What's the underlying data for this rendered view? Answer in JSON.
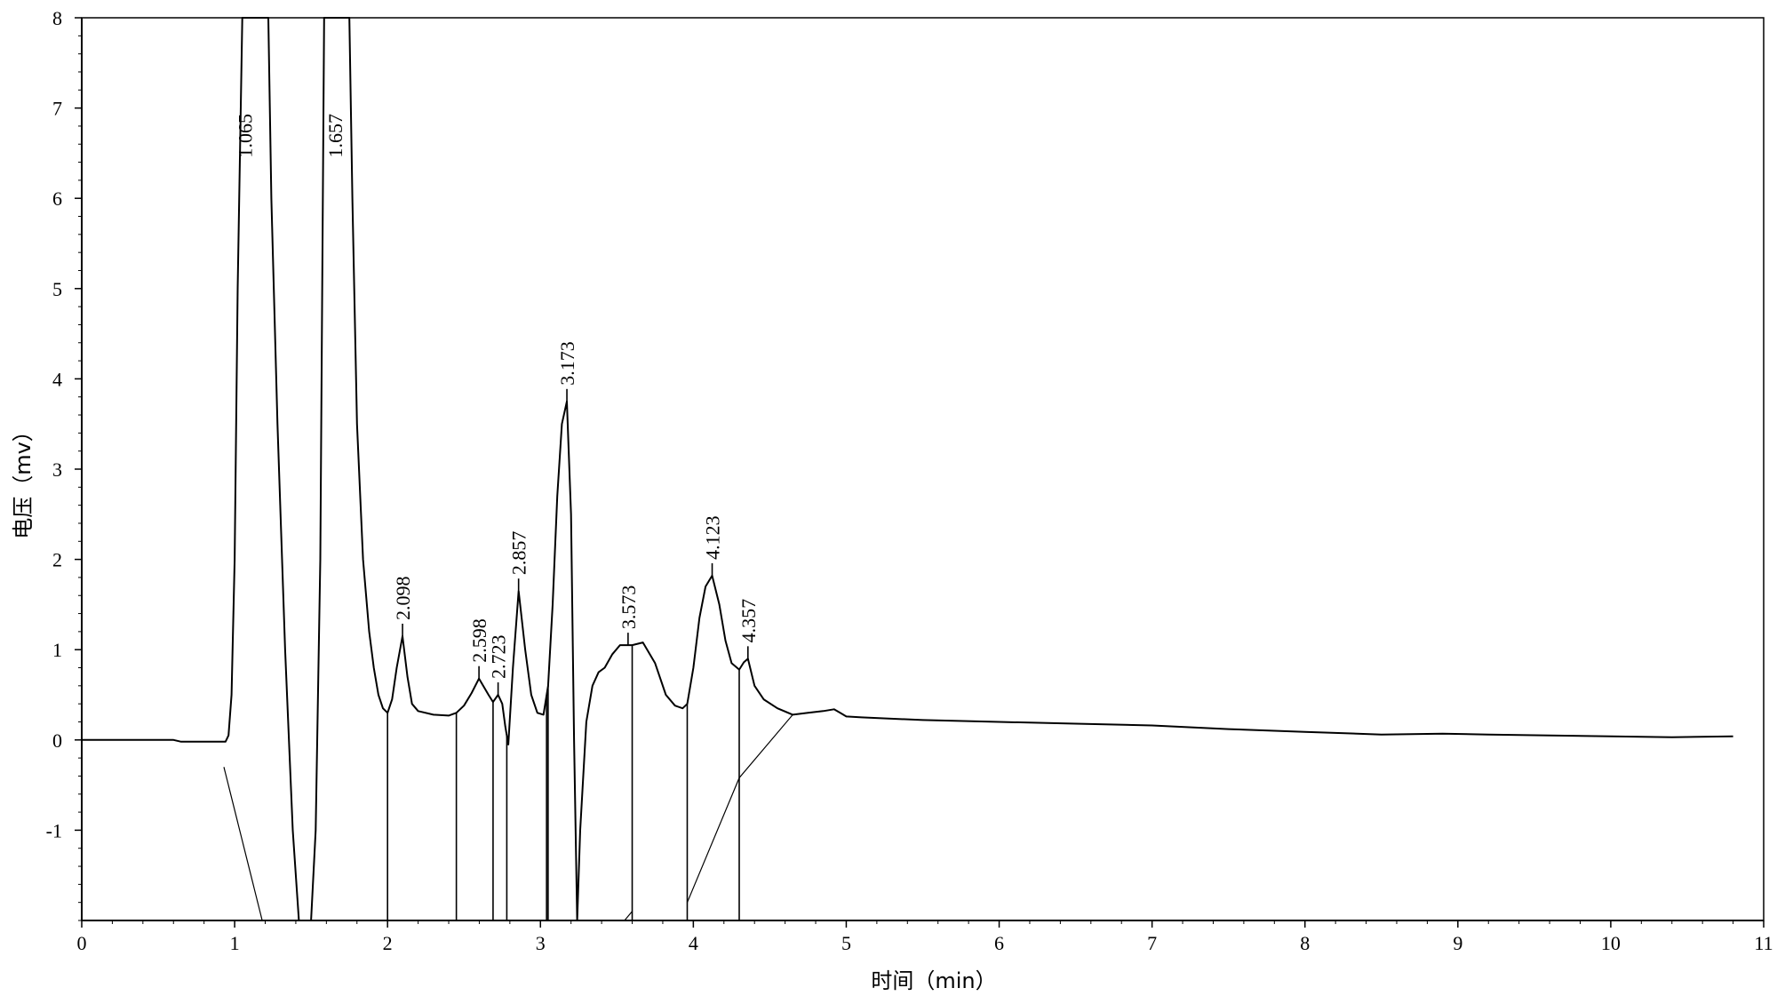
{
  "chart_data": {
    "type": "line",
    "title": "",
    "xlabel": "时间（min）",
    "ylabel": "电压（mv）",
    "xlim": [
      0,
      11
    ],
    "ylim": [
      -2,
      8
    ],
    "x_ticks": [
      "0",
      "1",
      "2",
      "3",
      "4",
      "5",
      "6",
      "7",
      "8",
      "9",
      "10",
      "11"
    ],
    "y_ticks": [
      "8",
      "7",
      "6",
      "5",
      "4",
      "3",
      "2",
      "1",
      "0",
      "-1"
    ],
    "series": [
      {
        "x": [
          0,
          0.6,
          0.65,
          0.7,
          0.94,
          0.96,
          0.98,
          1.0,
          1.02,
          1.05,
          1.065,
          1.22,
          1.24,
          1.28,
          1.33,
          1.38,
          1.42,
          1.46,
          1.5,
          1.53,
          1.56,
          1.585,
          1.657,
          1.75,
          1.77,
          1.8,
          1.84,
          1.88,
          1.91,
          1.94,
          1.97,
          2.0,
          2.03,
          2.06,
          2.098,
          2.13,
          2.16,
          2.2,
          2.3,
          2.4,
          2.45,
          2.5,
          2.55,
          2.598,
          2.66,
          2.69,
          2.723,
          2.75,
          2.77,
          2.79,
          2.82,
          2.857,
          2.9,
          2.94,
          2.98,
          3.02,
          3.05,
          3.08,
          3.11,
          3.14,
          3.173,
          3.2,
          3.22,
          3.24,
          3.26,
          3.3,
          3.34,
          3.38,
          3.42,
          3.47,
          3.52,
          3.573,
          3.6,
          3.67,
          3.75,
          3.82,
          3.88,
          3.93,
          3.96,
          4.0,
          4.04,
          4.08,
          4.123,
          4.17,
          4.21,
          4.25,
          4.3,
          4.33,
          4.357,
          4.4,
          4.46,
          4.55,
          4.65,
          4.75,
          4.85,
          4.92,
          4.96,
          5.0,
          5.1,
          5.5,
          6.0,
          6.5,
          7.0,
          7.5,
          8.0,
          8.5,
          8.9,
          9.2,
          9.6,
          10.0,
          10.4,
          10.8
        ],
        "y": [
          0.0,
          0.0,
          -0.02,
          -0.02,
          -0.02,
          0.05,
          0.5,
          2.0,
          5.0,
          8.0,
          8.0,
          8.0,
          6.0,
          3.5,
          1.0,
          -1.0,
          -2.0,
          -2.0,
          -2.0,
          -1.0,
          2.0,
          8.0,
          8.0,
          8.0,
          6.0,
          3.5,
          2.0,
          1.2,
          0.8,
          0.5,
          0.35,
          0.3,
          0.45,
          0.8,
          1.15,
          0.7,
          0.4,
          0.32,
          0.28,
          0.27,
          0.3,
          0.38,
          0.52,
          0.68,
          0.5,
          0.42,
          0.5,
          0.4,
          0.15,
          -0.05,
          0.8,
          1.65,
          1.0,
          0.5,
          0.3,
          0.28,
          0.6,
          1.5,
          2.7,
          3.5,
          3.75,
          2.5,
          0.0,
          -2.0,
          -1.0,
          0.2,
          0.6,
          0.75,
          0.8,
          0.95,
          1.05,
          1.05,
          1.05,
          1.08,
          0.85,
          0.5,
          0.38,
          0.35,
          0.4,
          0.8,
          1.35,
          1.7,
          1.82,
          1.5,
          1.1,
          0.85,
          0.78,
          0.86,
          0.9,
          0.6,
          0.45,
          0.35,
          0.28,
          0.3,
          0.32,
          0.34,
          0.3,
          0.26,
          0.25,
          0.22,
          0.2,
          0.18,
          0.16,
          0.12,
          0.09,
          0.06,
          0.07,
          0.06,
          0.05,
          0.04,
          0.03,
          0.04
        ]
      }
    ],
    "peaks": [
      {
        "label": "1.065",
        "x": 1.065,
        "y": 8.0
      },
      {
        "label": "1.657",
        "x": 1.657,
        "y": 8.0
      },
      {
        "label": "2.098",
        "x": 2.098,
        "y": 1.15
      },
      {
        "label": "2.598",
        "x": 2.598,
        "y": 0.68
      },
      {
        "label": "2.723",
        "x": 2.723,
        "y": 0.5
      },
      {
        "label": "2.857",
        "x": 2.857,
        "y": 1.65
      },
      {
        "label": "3.173",
        "x": 3.173,
        "y": 3.75
      },
      {
        "label": "3.573",
        "x": 3.573,
        "y": 1.05
      },
      {
        "label": "4.123",
        "x": 4.123,
        "y": 1.82
      },
      {
        "label": "4.357",
        "x": 4.357,
        "y": 0.9
      }
    ],
    "peak_drop_lines_x": [
      2.0,
      2.45,
      2.69,
      2.78,
      3.04,
      3.05,
      3.6,
      3.96,
      4.3
    ],
    "integration_baselines": [
      {
        "x": [
          0.93,
          1.18
        ],
        "y": [
          -0.3,
          -2.0
        ]
      },
      {
        "x": [
          3.55,
          3.6
        ],
        "y": [
          -2.0,
          -1.9
        ]
      },
      {
        "x": [
          3.96,
          4.3,
          4.65
        ],
        "y": [
          -1.8,
          -0.42,
          0.28
        ]
      }
    ],
    "grid": false,
    "legend": "none"
  }
}
